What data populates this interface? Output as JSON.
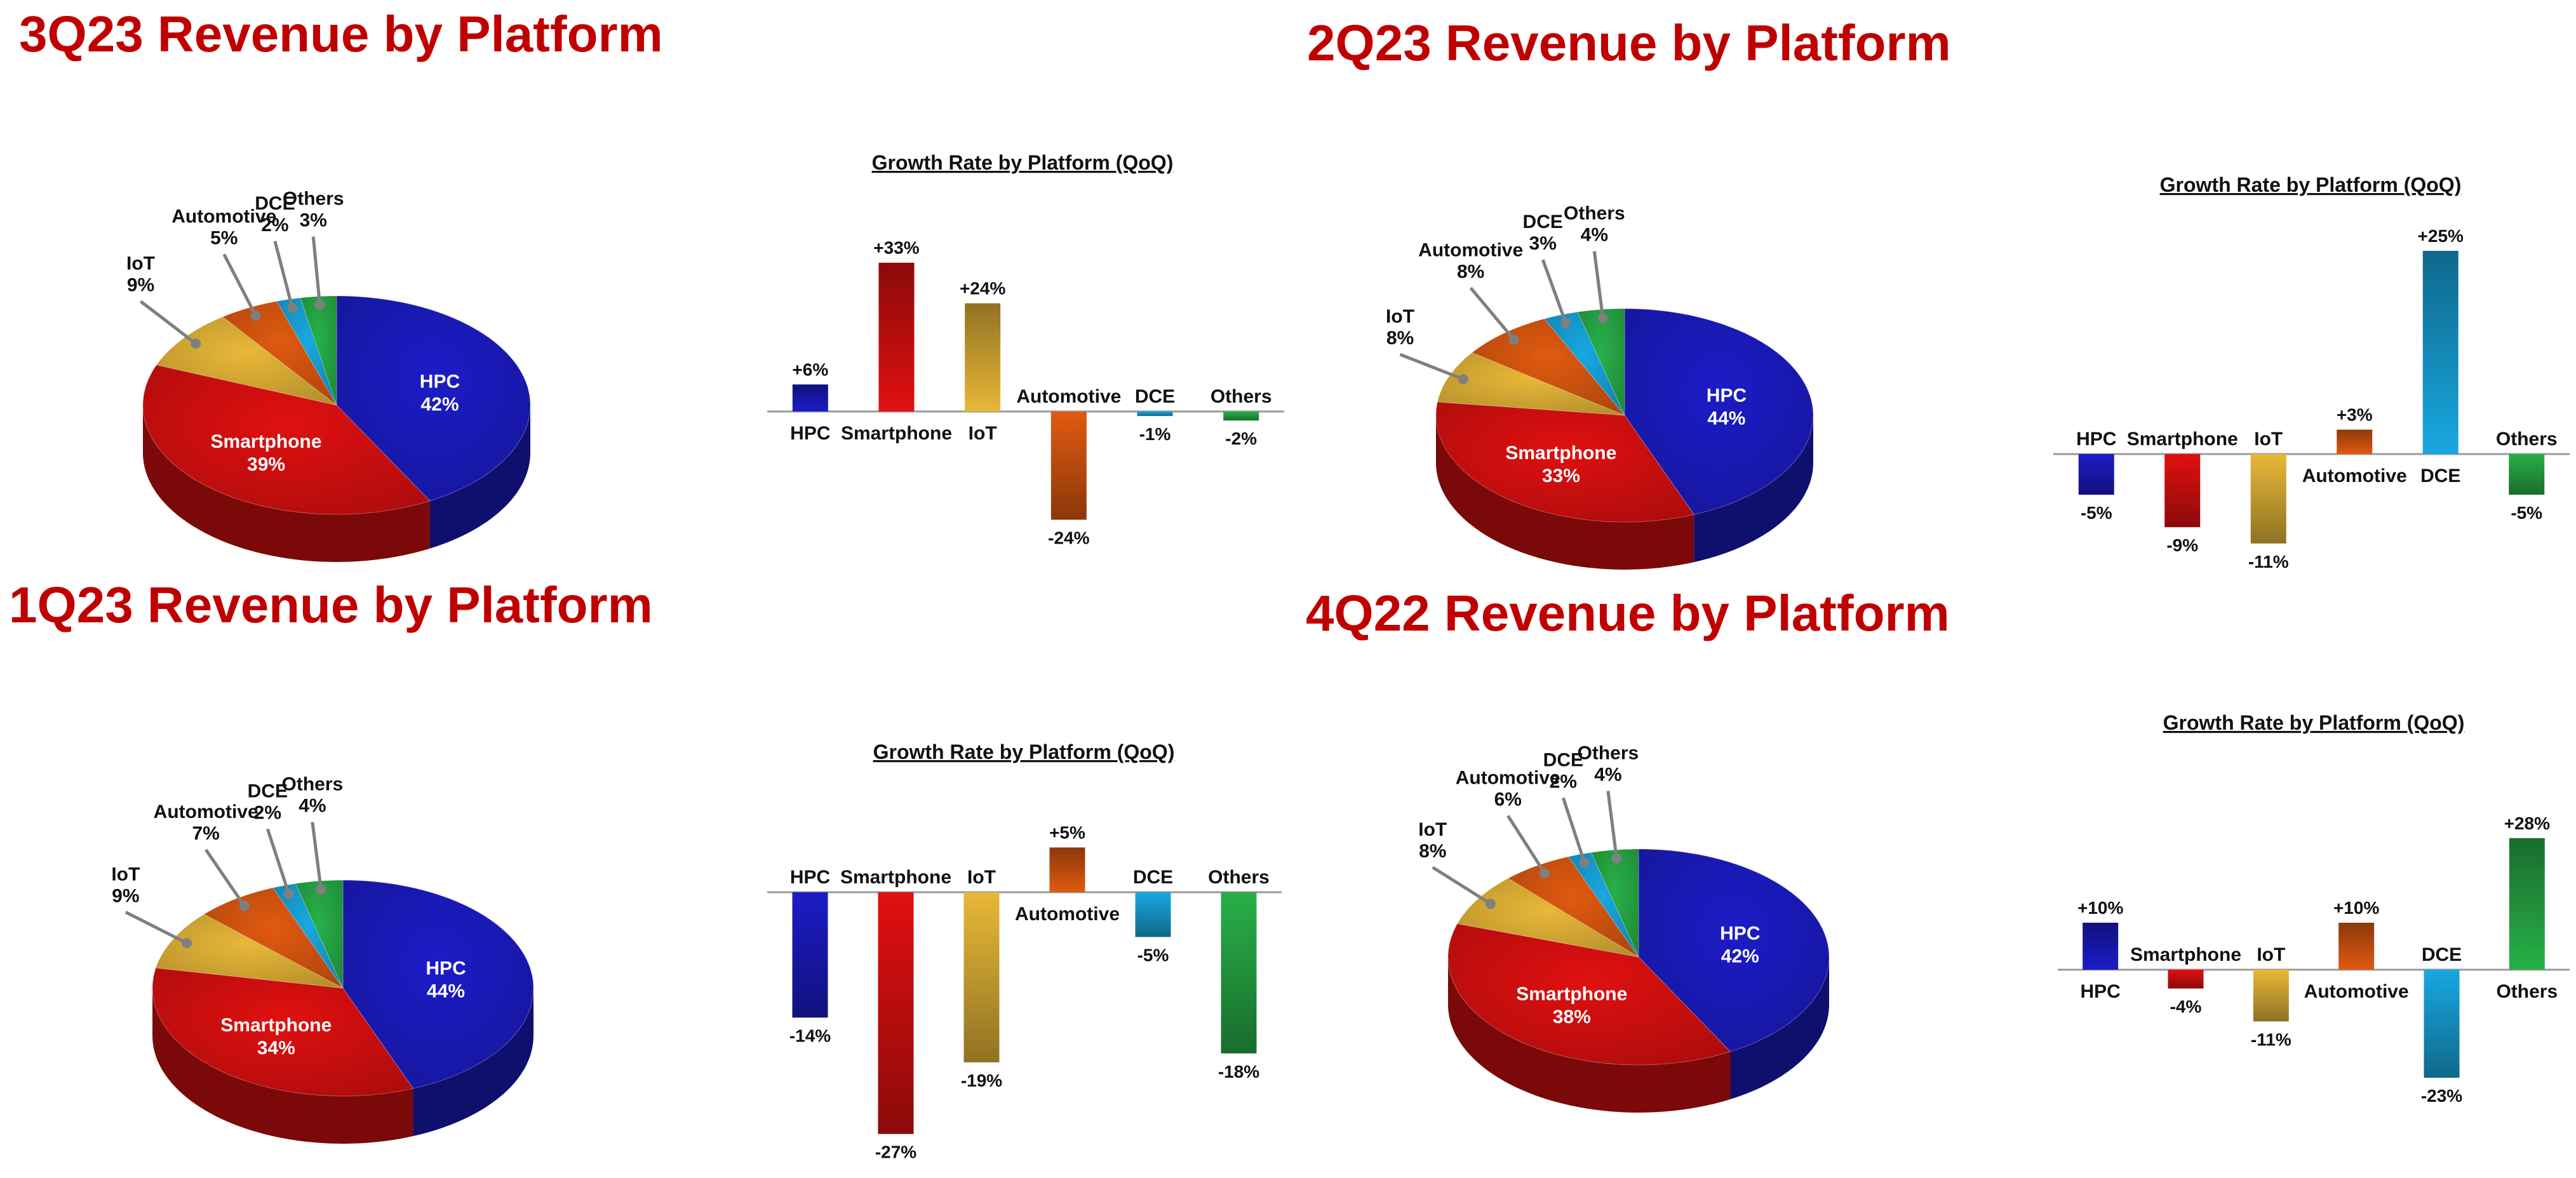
{
  "colors": {
    "title": "#c00000",
    "HPC": "#1c1cc8",
    "Smartphone": "#e01010",
    "IoT": "#e8b838",
    "Automotive": "#e05a10",
    "DCE": "#18a8e0",
    "Others": "#28b048"
  },
  "quadrants": [
    {
      "title": "3Q23 Revenue by Platform",
      "growth_title": "Growth Rate by Platform (QoQ)",
      "pie": [
        {
          "name": "HPC",
          "value": 42,
          "label": "42%"
        },
        {
          "name": "Smartphone",
          "value": 39,
          "label": "39%"
        },
        {
          "name": "IoT",
          "value": 9,
          "label": "9%"
        },
        {
          "name": "Automotive",
          "value": 5,
          "label": "5%"
        },
        {
          "name": "DCE",
          "value": 2,
          "label": "2%"
        },
        {
          "name": "Others",
          "value": 3,
          "label": "3%"
        }
      ],
      "growth": [
        {
          "name": "HPC",
          "value": 6,
          "label": "+6%"
        },
        {
          "name": "Smartphone",
          "value": 33,
          "label": "+33%"
        },
        {
          "name": "IoT",
          "value": 24,
          "label": "+24%"
        },
        {
          "name": "Automotive",
          "value": -24,
          "label": "-24%"
        },
        {
          "name": "DCE",
          "value": -1,
          "label": "-1%"
        },
        {
          "name": "Others",
          "value": -2,
          "label": "-2%"
        }
      ]
    },
    {
      "title": "2Q23 Revenue by Platform",
      "growth_title": "Growth Rate by Platform (QoQ)",
      "pie": [
        {
          "name": "HPC",
          "value": 44,
          "label": "44%"
        },
        {
          "name": "Smartphone",
          "value": 33,
          "label": "33%"
        },
        {
          "name": "IoT",
          "value": 8,
          "label": "8%"
        },
        {
          "name": "Automotive",
          "value": 8,
          "label": "8%"
        },
        {
          "name": "DCE",
          "value": 3,
          "label": "3%"
        },
        {
          "name": "Others",
          "value": 4,
          "label": "4%"
        }
      ],
      "growth": [
        {
          "name": "HPC",
          "value": -5,
          "label": "-5%"
        },
        {
          "name": "Smartphone",
          "value": -9,
          "label": "-9%"
        },
        {
          "name": "IoT",
          "value": -11,
          "label": "-11%"
        },
        {
          "name": "Automotive",
          "value": 3,
          "label": "+3%"
        },
        {
          "name": "DCE",
          "value": 25,
          "label": "+25%"
        },
        {
          "name": "Others",
          "value": -5,
          "label": "-5%"
        }
      ]
    },
    {
      "title": "1Q23 Revenue by Platform",
      "growth_title": "Growth Rate by Platform (QoQ)",
      "pie": [
        {
          "name": "HPC",
          "value": 44,
          "label": "44%"
        },
        {
          "name": "Smartphone",
          "value": 34,
          "label": "34%"
        },
        {
          "name": "IoT",
          "value": 9,
          "label": "9%"
        },
        {
          "name": "Automotive",
          "value": 7,
          "label": "7%"
        },
        {
          "name": "DCE",
          "value": 2,
          "label": "2%"
        },
        {
          "name": "Others",
          "value": 4,
          "label": "4%"
        }
      ],
      "growth": [
        {
          "name": "HPC",
          "value": -14,
          "label": "-14%"
        },
        {
          "name": "Smartphone",
          "value": -27,
          "label": "-27%"
        },
        {
          "name": "IoT",
          "value": -19,
          "label": "-19%"
        },
        {
          "name": "Automotive",
          "value": 5,
          "label": "+5%"
        },
        {
          "name": "DCE",
          "value": -5,
          "label": "-5%"
        },
        {
          "name": "Others",
          "value": -18,
          "label": "-18%"
        }
      ]
    },
    {
      "title": "4Q22 Revenue by Platform",
      "growth_title": "Growth Rate by Platform (QoQ)",
      "pie": [
        {
          "name": "HPC",
          "value": 42,
          "label": "42%"
        },
        {
          "name": "Smartphone",
          "value": 38,
          "label": "38%"
        },
        {
          "name": "IoT",
          "value": 8,
          "label": "8%"
        },
        {
          "name": "Automotive",
          "value": 6,
          "label": "6%"
        },
        {
          "name": "DCE",
          "value": 2,
          "label": "2%"
        },
        {
          "name": "Others",
          "value": 4,
          "label": "4%"
        }
      ],
      "growth": [
        {
          "name": "HPC",
          "value": 10,
          "label": "+10%"
        },
        {
          "name": "Smartphone",
          "value": -4,
          "label": "-4%"
        },
        {
          "name": "IoT",
          "value": -11,
          "label": "-11%"
        },
        {
          "name": "Automotive",
          "value": 10,
          "label": "+10%"
        },
        {
          "name": "DCE",
          "value": -23,
          "label": "-23%"
        },
        {
          "name": "Others",
          "value": 28,
          "label": "+28%"
        }
      ]
    }
  ],
  "chart_data": [
    {
      "type": "pie",
      "title": "3Q23 Revenue by Platform",
      "categories": [
        "HPC",
        "Smartphone",
        "IoT",
        "Automotive",
        "DCE",
        "Others"
      ],
      "values": [
        42,
        39,
        9,
        5,
        2,
        3
      ]
    },
    {
      "type": "bar",
      "title": "Growth Rate by Platform (QoQ)",
      "categories": [
        "HPC",
        "Smartphone",
        "IoT",
        "Automotive",
        "DCE",
        "Others"
      ],
      "values": [
        6,
        33,
        24,
        -24,
        -1,
        -2
      ]
    },
    {
      "type": "pie",
      "title": "2Q23 Revenue by Platform",
      "categories": [
        "HPC",
        "Smartphone",
        "IoT",
        "Automotive",
        "DCE",
        "Others"
      ],
      "values": [
        44,
        33,
        8,
        8,
        3,
        4
      ]
    },
    {
      "type": "bar",
      "title": "Growth Rate by Platform (QoQ)",
      "categories": [
        "HPC",
        "Smartphone",
        "IoT",
        "Automotive",
        "DCE",
        "Others"
      ],
      "values": [
        -5,
        -9,
        -11,
        3,
        25,
        -5
      ]
    },
    {
      "type": "pie",
      "title": "1Q23 Revenue by Platform",
      "categories": [
        "HPC",
        "Smartphone",
        "IoT",
        "Automotive",
        "DCE",
        "Others"
      ],
      "values": [
        44,
        34,
        9,
        7,
        2,
        4
      ]
    },
    {
      "type": "bar",
      "title": "Growth Rate by Platform (QoQ)",
      "categories": [
        "HPC",
        "Smartphone",
        "IoT",
        "Automotive",
        "DCE",
        "Others"
      ],
      "values": [
        -14,
        -27,
        -19,
        5,
        -5,
        -18
      ]
    },
    {
      "type": "pie",
      "title": "4Q22 Revenue by Platform",
      "categories": [
        "HPC",
        "Smartphone",
        "IoT",
        "Automotive",
        "DCE",
        "Others"
      ],
      "values": [
        42,
        38,
        8,
        6,
        2,
        4
      ]
    },
    {
      "type": "bar",
      "title": "Growth Rate by Platform (QoQ)",
      "categories": [
        "HPC",
        "Smartphone",
        "IoT",
        "Automotive",
        "DCE",
        "Others"
      ],
      "values": [
        10,
        -4,
        -11,
        10,
        -23,
        28
      ]
    }
  ]
}
